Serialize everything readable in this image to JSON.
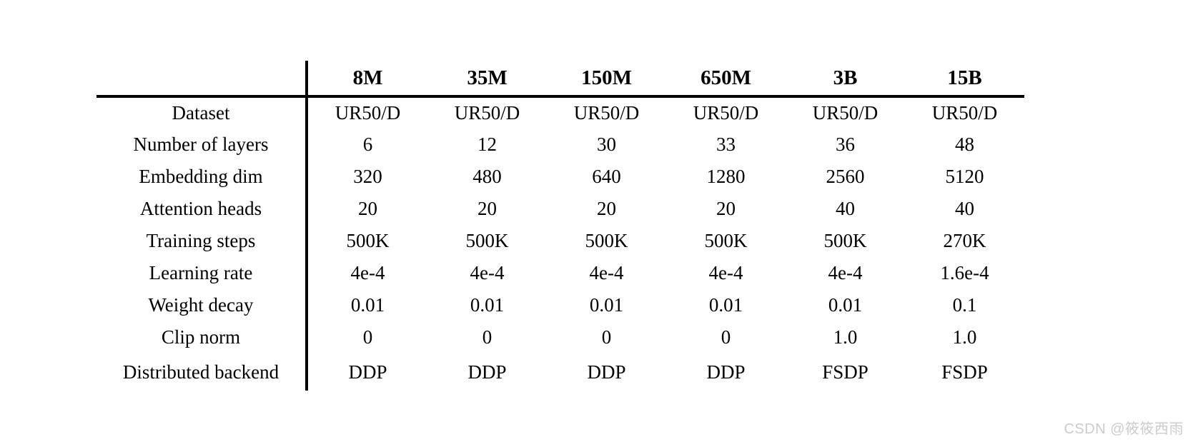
{
  "table": {
    "corner_label": "",
    "columns": [
      "8M",
      "35M",
      "150M",
      "650M",
      "3B",
      "15B"
    ],
    "rows": [
      {
        "label": "Dataset",
        "values": [
          "UR50/D",
          "UR50/D",
          "UR50/D",
          "UR50/D",
          "UR50/D",
          "UR50/D"
        ]
      },
      {
        "label": "Number of layers",
        "values": [
          "6",
          "12",
          "30",
          "33",
          "36",
          "48"
        ]
      },
      {
        "label": "Embedding dim",
        "values": [
          "320",
          "480",
          "640",
          "1280",
          "2560",
          "5120"
        ]
      },
      {
        "label": "Attention heads",
        "values": [
          "20",
          "20",
          "20",
          "20",
          "40",
          "40"
        ]
      },
      {
        "label": "Training steps",
        "values": [
          "500K",
          "500K",
          "500K",
          "500K",
          "500K",
          "270K"
        ]
      },
      {
        "label": "Learning rate",
        "values": [
          "4e-4",
          "4e-4",
          "4e-4",
          "4e-4",
          "4e-4",
          "1.6e-4"
        ]
      },
      {
        "label": "Weight decay",
        "values": [
          "0.01",
          "0.01",
          "0.01",
          "0.01",
          "0.01",
          "0.1"
        ]
      },
      {
        "label": "Clip norm",
        "values": [
          "0",
          "0",
          "0",
          "0",
          "1.0",
          "1.0"
        ]
      },
      {
        "label": "Distributed backend",
        "values": [
          "DDP",
          "DDP",
          "DDP",
          "DDP",
          "FSDP",
          "FSDP"
        ]
      }
    ]
  },
  "watermark": "CSDN @筱筱西雨",
  "colors": {
    "background": "#ffffff",
    "text": "#000000",
    "rule": "#000000",
    "watermark": "#cccccc"
  }
}
